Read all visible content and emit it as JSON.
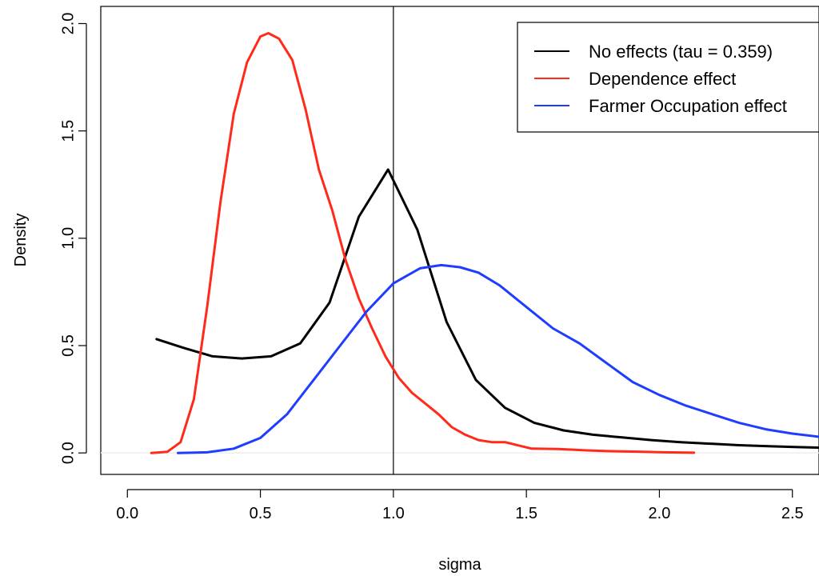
{
  "chart_data": {
    "type": "line",
    "title": "",
    "xlabel": "sigma",
    "ylabel": "Density",
    "xlim": [
      -0.1,
      2.6
    ],
    "ylim": [
      -0.1,
      2.08
    ],
    "xticks": [
      {
        "value": 0.0,
        "label": "0.0"
      },
      {
        "value": 0.5,
        "label": "0.5"
      },
      {
        "value": 1.0,
        "label": "1.0"
      },
      {
        "value": 1.5,
        "label": "1.5"
      },
      {
        "value": 2.0,
        "label": "2.0"
      },
      {
        "value": 2.5,
        "label": "2.5"
      }
    ],
    "yticks": [
      {
        "value": 0.0,
        "label": "0.0"
      },
      {
        "value": 0.5,
        "label": "0.5"
      },
      {
        "value": 1.0,
        "label": "1.0"
      },
      {
        "value": 1.5,
        "label": "1.5"
      },
      {
        "value": 2.0,
        "label": "2.0"
      }
    ],
    "grid": false,
    "legend_position": "top-right",
    "vline": {
      "x": 1.0,
      "color": "#000000"
    },
    "hline": {
      "y": 0.0,
      "color": "#eeeeee"
    },
    "series": [
      {
        "name": "No effects (tau = 0.359)",
        "color": "#000000",
        "points": [
          [
            0.11,
            0.53
          ],
          [
            0.21,
            0.49
          ],
          [
            0.32,
            0.45
          ],
          [
            0.43,
            0.44
          ],
          [
            0.54,
            0.45
          ],
          [
            0.65,
            0.51
          ],
          [
            0.76,
            0.7
          ],
          [
            0.87,
            1.1
          ],
          [
            0.98,
            1.32
          ],
          [
            1.09,
            1.04
          ],
          [
            1.2,
            0.61
          ],
          [
            1.31,
            0.34
          ],
          [
            1.42,
            0.21
          ],
          [
            1.53,
            0.14
          ],
          [
            1.64,
            0.105
          ],
          [
            1.75,
            0.085
          ],
          [
            1.86,
            0.072
          ],
          [
            1.97,
            0.06
          ],
          [
            2.08,
            0.05
          ],
          [
            2.19,
            0.043
          ],
          [
            2.3,
            0.036
          ],
          [
            2.41,
            0.031
          ],
          [
            2.52,
            0.027
          ],
          [
            2.6,
            0.025
          ]
        ]
      },
      {
        "name": "Dependence effect",
        "color": "#ff2a1a",
        "points": [
          [
            0.09,
            0.0
          ],
          [
            0.15,
            0.005
          ],
          [
            0.2,
            0.05
          ],
          [
            0.25,
            0.25
          ],
          [
            0.3,
            0.68
          ],
          [
            0.35,
            1.17
          ],
          [
            0.4,
            1.58
          ],
          [
            0.45,
            1.82
          ],
          [
            0.5,
            1.94
          ],
          [
            0.53,
            1.955
          ],
          [
            0.57,
            1.93
          ],
          [
            0.62,
            1.83
          ],
          [
            0.67,
            1.6
          ],
          [
            0.72,
            1.32
          ],
          [
            0.77,
            1.13
          ],
          [
            0.82,
            0.9
          ],
          [
            0.87,
            0.72
          ],
          [
            0.92,
            0.58
          ],
          [
            0.97,
            0.45
          ],
          [
            1.02,
            0.35
          ],
          [
            1.07,
            0.28
          ],
          [
            1.12,
            0.23
          ],
          [
            1.17,
            0.18
          ],
          [
            1.22,
            0.12
          ],
          [
            1.27,
            0.085
          ],
          [
            1.32,
            0.06
          ],
          [
            1.37,
            0.05
          ],
          [
            1.42,
            0.05
          ],
          [
            1.47,
            0.035
          ],
          [
            1.52,
            0.02
          ],
          [
            1.62,
            0.018
          ],
          [
            1.72,
            0.012
          ],
          [
            1.82,
            0.008
          ],
          [
            1.92,
            0.006
          ],
          [
            2.02,
            0.003
          ],
          [
            2.13,
            0.001
          ]
        ]
      },
      {
        "name": "Farmer Occupation effect",
        "color": "#1f3dff",
        "points": [
          [
            0.19,
            0.0
          ],
          [
            0.3,
            0.003
          ],
          [
            0.4,
            0.02
          ],
          [
            0.5,
            0.07
          ],
          [
            0.6,
            0.18
          ],
          [
            0.7,
            0.34
          ],
          [
            0.8,
            0.5
          ],
          [
            0.9,
            0.66
          ],
          [
            1.0,
            0.79
          ],
          [
            1.1,
            0.86
          ],
          [
            1.18,
            0.875
          ],
          [
            1.25,
            0.865
          ],
          [
            1.32,
            0.84
          ],
          [
            1.4,
            0.78
          ],
          [
            1.5,
            0.68
          ],
          [
            1.6,
            0.58
          ],
          [
            1.7,
            0.51
          ],
          [
            1.8,
            0.42
          ],
          [
            1.9,
            0.33
          ],
          [
            2.0,
            0.27
          ],
          [
            2.1,
            0.22
          ],
          [
            2.2,
            0.18
          ],
          [
            2.3,
            0.14
          ],
          [
            2.4,
            0.11
          ],
          [
            2.5,
            0.09
          ],
          [
            2.6,
            0.075
          ]
        ]
      }
    ]
  }
}
